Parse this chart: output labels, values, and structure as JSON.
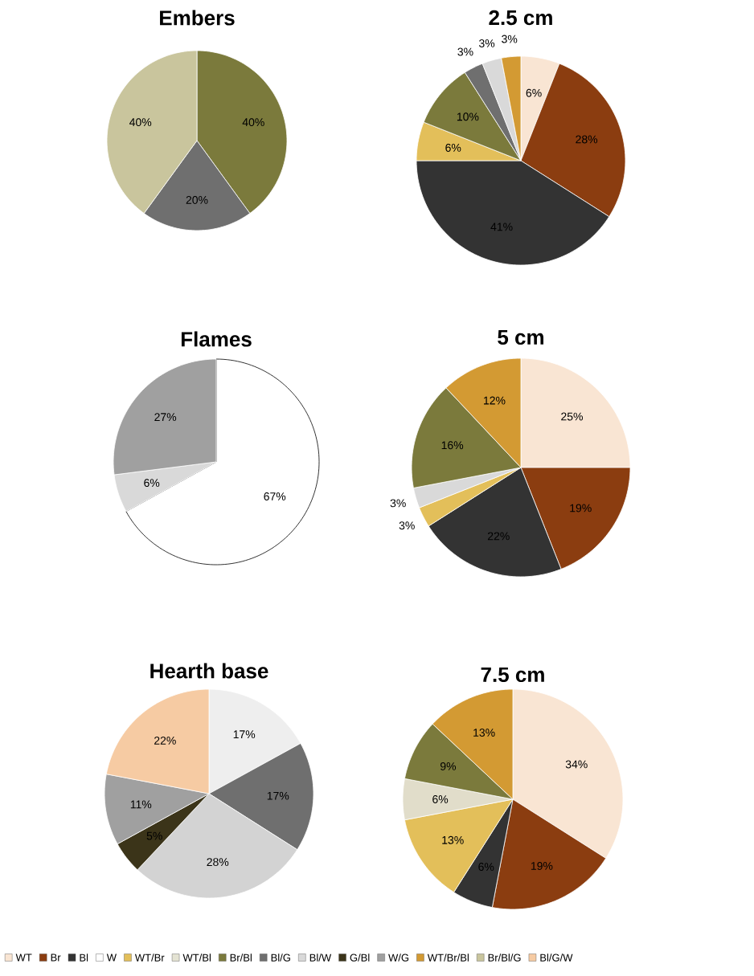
{
  "chart_data": [
    {
      "type": "pie",
      "title": "Embers",
      "categories": [
        null,
        null,
        null
      ],
      "values": [
        40,
        20,
        40
      ],
      "colors": [
        "#7b7a3c",
        "#6f6f6f",
        "#c9c59d"
      ],
      "value_labels": [
        "40%",
        "20%",
        "40%"
      ]
    },
    {
      "type": "pie",
      "title": "2.5 cm",
      "categories": [
        null,
        null,
        null,
        null,
        null,
        null,
        null,
        null
      ],
      "values": [
        6,
        28,
        41,
        6,
        10,
        3,
        3,
        3
      ],
      "colors": [
        "#f9e5d3",
        "#8b3d10",
        "#333333",
        "#e3bf5a",
        "#7b7a3c",
        "#6f6f6f",
        "#d9d9d9",
        "#d39a33"
      ],
      "value_labels": [
        "6%",
        "28%",
        "41%",
        "6%",
        "10%",
        "3%",
        "3%",
        "3%"
      ]
    },
    {
      "type": "pie",
      "title": "Flames",
      "categories": [
        null,
        null,
        null
      ],
      "values": [
        67,
        6,
        27
      ],
      "colors": [
        "#ffffff",
        "#d9d9d9",
        "#a0a0a0"
      ],
      "value_labels": [
        "67%",
        "6%",
        "27%"
      ]
    },
    {
      "type": "pie",
      "title": "5 cm",
      "categories": [
        null,
        null,
        null,
        null,
        null,
        null,
        null
      ],
      "values": [
        25,
        19,
        22,
        3,
        3,
        16,
        12
      ],
      "colors": [
        "#f9e5d3",
        "#8b3d10",
        "#333333",
        "#e3bf5a",
        "#d9d9d9",
        "#7b7a3c",
        "#d39a33"
      ],
      "value_labels": [
        "25%",
        "19%",
        "22%",
        "3%",
        "3%",
        "16%",
        "12%"
      ]
    },
    {
      "type": "pie",
      "title": "Hearth base",
      "categories": [
        null,
        null,
        null,
        null,
        null,
        null
      ],
      "values": [
        17,
        17,
        28,
        5,
        11,
        22
      ],
      "colors": [
        "#eeeeee",
        "#6f6f6f",
        "#d3d3d3",
        "#3b3419",
        "#a0a0a0",
        "#f6cba3"
      ],
      "value_labels": [
        "17%",
        "17%",
        "28%",
        "5%",
        "11%",
        "22%"
      ]
    },
    {
      "type": "pie",
      "title": "7.5 cm",
      "categories": [
        null,
        null,
        null,
        null,
        null,
        null,
        null
      ],
      "values": [
        34,
        19,
        6,
        13,
        6,
        9,
        13
      ],
      "colors": [
        "#f9e5d3",
        "#8b3d10",
        "#333333",
        "#e3bf5a",
        "#e1ddca",
        "#7b7a3c",
        "#d39a33"
      ],
      "value_labels": [
        "34%",
        "19%",
        "6%",
        "13%",
        "6%",
        "9%",
        "13%"
      ]
    },
    {
      "type": "other",
      "categories": [
        "WT",
        "Br",
        "Bl",
        "W",
        "WT/Br",
        "WT/Bl",
        "Br/Bl",
        "Bl/G",
        "Bl/W",
        "G/Bl",
        "W/G",
        "WT/Br/Bl",
        "Br/Bl/G",
        "Bl/G/W"
      ],
      "colors": [
        "#f9e5d3",
        "#8b3d10",
        "#333333",
        "#ffffff",
        "#e3bf5a",
        "#e4e3d3",
        "#7b7a3c",
        "#6f6f6f",
        "#d9d9d9",
        "#3b3419",
        "#a0a0a0",
        "#d39a33",
        "#c9c59d",
        "#f6cba3"
      ]
    }
  ]
}
